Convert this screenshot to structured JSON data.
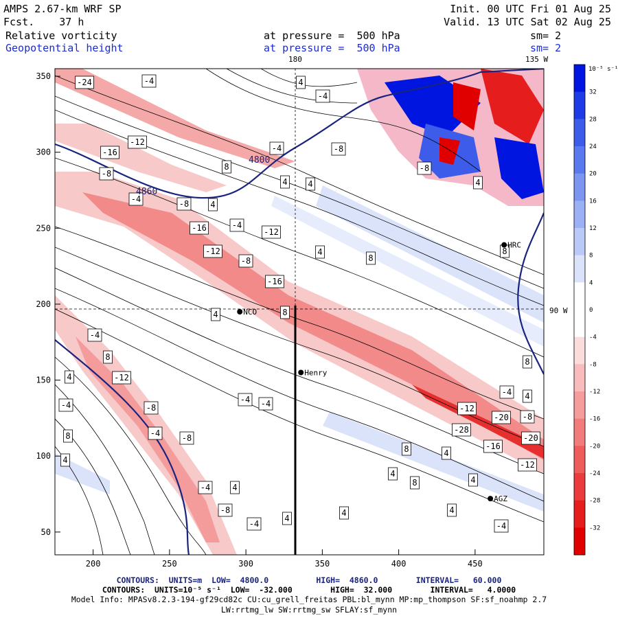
{
  "header": {
    "model": "AMPS 2.67-km WRF SP",
    "forecast": "Fcst.    37 h",
    "init": "Init. 00 UTC Fri 01 Aug 25",
    "valid": "Valid. 13 UTC Sat 02 Aug 25",
    "field1": "Relative vorticity",
    "field2": "Geopotential height",
    "level1": "at pressure =  500 hPa",
    "level2": "at pressure =  500 hPa",
    "sm1": "sm= 2",
    "sm2": "sm= 2"
  },
  "map": {
    "label_180": "180",
    "label_135w": "135 W",
    "label_90w": "90 W",
    "x_ticks": [
      200,
      250,
      300,
      350,
      400,
      450
    ],
    "y_ticks": [
      50,
      100,
      150,
      200,
      250,
      300,
      350
    ],
    "x_range": [
      175,
      495
    ],
    "y_range": [
      35,
      355
    ],
    "stations": [
      {
        "name": "NCO",
        "x": 296,
        "y": 195
      },
      {
        "name": "Henry",
        "x": 336,
        "y": 155
      },
      {
        "name": "HRC",
        "x": 469,
        "y": 239
      },
      {
        "name": "AGZ",
        "x": 460,
        "y": 72
      }
    ],
    "height_labels": [
      "4800",
      "4860"
    ],
    "contour_labels": [
      "-24",
      "-4",
      "4",
      "-4",
      "-12",
      "-16",
      "-8",
      "-4",
      "-8",
      "4",
      "8",
      "4",
      "-4",
      "-8",
      "-12",
      "-16",
      "-12",
      "-8",
      "-16",
      "-4",
      "4",
      "8",
      "4",
      "8",
      "-8",
      "-12",
      "-20",
      "-20",
      "-28",
      "-16",
      "-12",
      "-8",
      "4",
      "8",
      "-4",
      "4",
      "8",
      "-4",
      "4",
      "-12",
      "-8",
      "-4",
      "-8",
      "-4",
      "4",
      "-4",
      "-4",
      "-8",
      "-4",
      "4",
      "4",
      "8",
      "4",
      "4",
      "8",
      "4",
      "4",
      "-4",
      "4",
      "8",
      "8",
      "-4",
      "4"
    ]
  },
  "colorbar": {
    "unit_label": "10⁻⁵ s⁻¹",
    "ticks": [
      "32",
      "28",
      "24",
      "20",
      "16",
      "12",
      "8",
      "4",
      "0",
      "-4",
      "-8",
      "-12",
      "-16",
      "-20",
      "-24",
      "-28",
      "-32"
    ],
    "colors_pos": [
      "#0015e0",
      "#1d3ce6",
      "#3d5cea",
      "#5b79ee",
      "#7b95f1",
      "#9bb0f5",
      "#bbc9f8",
      "#dbe3fb"
    ],
    "colors_neg": [
      "#fbdcdc",
      "#f8bcbc",
      "#f59c9c",
      "#f27c7c",
      "#ee5c5c",
      "#ea3c3c",
      "#e61d1d",
      "#e00000"
    ]
  },
  "footer": {
    "line1": "CONTOURS:  UNITS=m  LOW=  4800.0          HIGH=  4860.0        INTERVAL=   60.000",
    "line2": "CONTOURS:  UNITS=10⁻⁵ s⁻¹  LOW=  -32.000        HIGH=  32.000        INTERVAL=   4.0000",
    "line3": "Model Info: MPASv8.2.3-194-gf29cd82c CU:cu_grell_freitas PBL:bl_mynn MP:mp_thompson SF:sf_noahmp 2.7",
    "line4": "LW:rrtmg_lw SW:rrtmg_sw SFLAY:sf_mynn"
  }
}
